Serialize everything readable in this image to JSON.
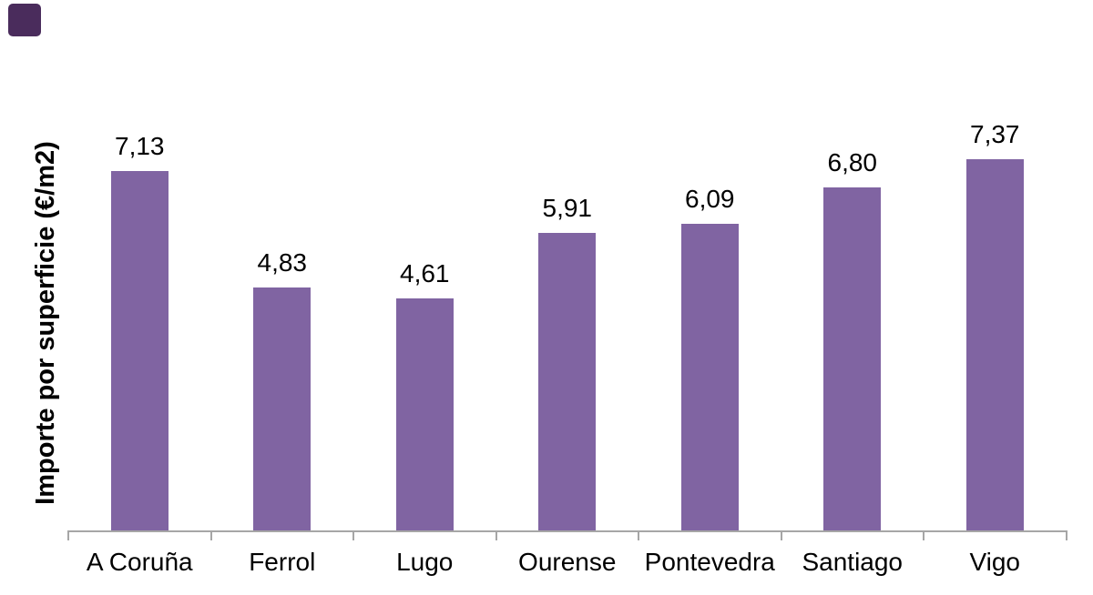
{
  "chart_data": {
    "type": "bar",
    "title": "",
    "xlabel": "",
    "ylabel": "Importe por superficie (€/m2)",
    "categories": [
      "A Coruña",
      "Ferrol",
      "Lugo",
      "Ourense",
      "Pontevedra",
      "Santiago",
      "Vigo"
    ],
    "values": [
      7.13,
      4.83,
      4.61,
      5.91,
      6.09,
      6.8,
      7.37
    ],
    "value_labels": [
      "7,13",
      "4,83",
      "4,61",
      "5,91",
      "6,09",
      "6,80",
      "7,37"
    ],
    "ylim": [
      0,
      8
    ],
    "grid": false,
    "legend": "none",
    "bar_color": "#8064A2",
    "axis_color": "#A6A6A6",
    "label_color": "#000000"
  },
  "decor": {
    "corner_square_color": "#4A2C5C"
  }
}
